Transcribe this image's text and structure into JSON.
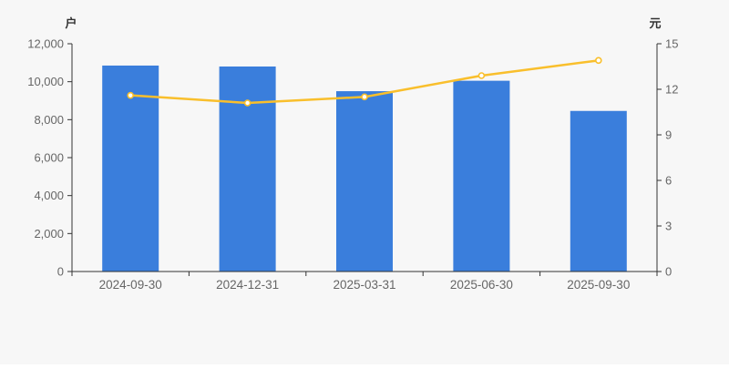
{
  "chart": {
    "left_axis_unit": "户",
    "right_axis_unit": "元"
  },
  "chart_data": {
    "type": "bar+line",
    "title": "",
    "legend": "none",
    "grid": false,
    "categories": [
      "2024-09-30",
      "2024-12-31",
      "2025-03-31",
      "2025-06-30",
      "2025-09-30"
    ],
    "series": [
      {
        "name": "户",
        "type": "bar",
        "axis": "left",
        "color": "#3a7edc",
        "values": [
          10850,
          10800,
          9500,
          10050,
          8460
        ]
      },
      {
        "name": "元",
        "type": "line",
        "axis": "right",
        "color": "#f9bf2c",
        "marker": "open-circle",
        "marker_fill": "#ffffff",
        "values": [
          11.6,
          11.1,
          11.5,
          12.9,
          13.9
        ]
      }
    ],
    "left_axis": {
      "unit": "户",
      "min": 0,
      "max": 12000,
      "tick_step": 2000,
      "tick_labels": [
        "0",
        "2,000",
        "4,000",
        "6,000",
        "8,000",
        "10,000",
        "12,000"
      ]
    },
    "right_axis": {
      "unit": "元",
      "min": 0,
      "max": 15,
      "tick_step": 3,
      "tick_labels": [
        "0",
        "3",
        "6",
        "9",
        "12",
        "15"
      ]
    },
    "colors": {
      "background": "#f7f7f7",
      "axis_line": "#333333",
      "tick_text": "#666666",
      "unit_text": "#333333"
    }
  }
}
